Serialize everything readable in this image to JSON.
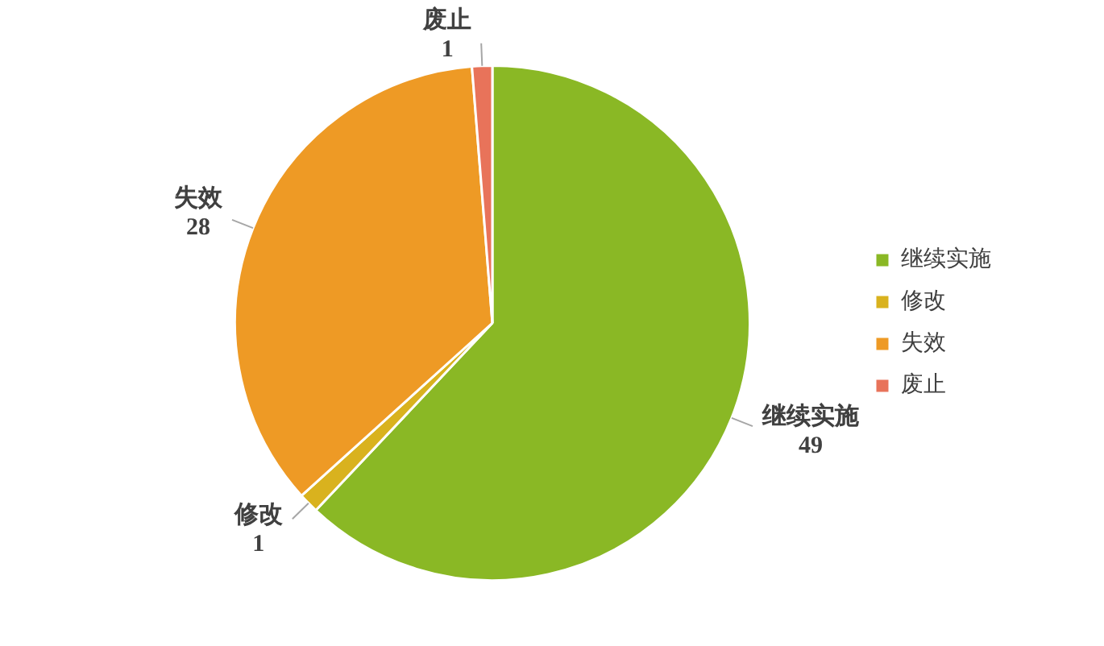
{
  "chart_data": {
    "type": "pie",
    "categories": [
      "继续实施",
      "修改",
      "失效",
      "废止"
    ],
    "values": [
      49,
      1,
      28,
      1
    ],
    "colors": [
      "#8ab825",
      "#d9b21e",
      "#ee9a25",
      "#e8735a"
    ],
    "data_labels": true,
    "legend": "right"
  }
}
